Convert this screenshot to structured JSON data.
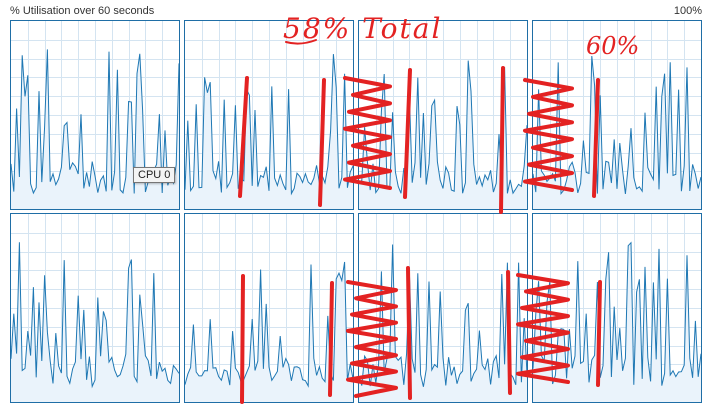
{
  "header": {
    "title": "% Utilisation over 60 seconds",
    "max": "100%"
  },
  "graphs": [
    {
      "name": "cpu-0-graph"
    },
    {
      "name": "cpu-1-graph"
    },
    {
      "name": "cpu-2-graph"
    },
    {
      "name": "cpu-3-graph"
    },
    {
      "name": "cpu-4-graph"
    },
    {
      "name": "cpu-5-graph"
    },
    {
      "name": "cpu-6-graph"
    },
    {
      "name": "cpu-7-graph"
    }
  ],
  "tooltip": {
    "text": "CPU 0"
  },
  "annotations": {
    "total": "58% Total",
    "right": "60%"
  },
  "colors": {
    "line": "#1f78b4",
    "fill": "#eaf3fb",
    "grid": "#d4e4f1",
    "border": "#1f6ea6",
    "ink": "#e32222"
  }
}
